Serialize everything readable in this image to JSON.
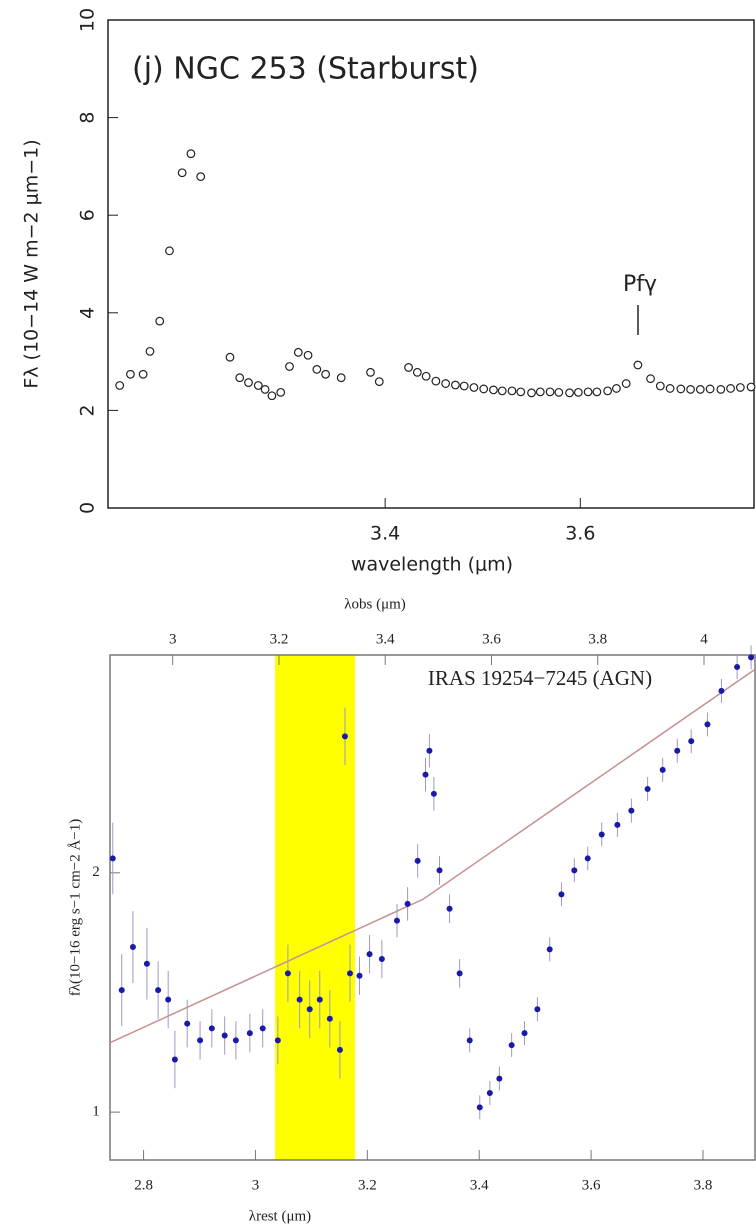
{
  "chart_data": [
    {
      "type": "scatter",
      "title": "(j) NGC 253 (Starburst)",
      "xlabel": "wavelength (μm)",
      "ylabel": "Fλ (10−14 W m−2 μm−1)",
      "annotation": "Pfγ",
      "x": [
        3.128,
        3.139,
        3.152,
        3.159,
        3.169,
        3.179,
        3.192,
        3.201,
        3.211,
        3.241,
        3.251,
        3.26,
        3.27,
        3.277,
        3.284,
        3.293,
        3.302,
        3.311,
        3.321,
        3.33,
        3.339,
        3.355,
        3.385,
        3.394,
        3.424,
        3.433,
        3.442,
        3.452,
        3.462,
        3.472,
        3.481,
        3.491,
        3.501,
        3.511,
        3.52,
        3.53,
        3.539,
        3.55,
        3.559,
        3.569,
        3.578,
        3.589,
        3.598,
        3.608,
        3.617,
        3.628,
        3.637,
        3.647,
        3.659,
        3.672,
        3.682,
        3.692,
        3.703,
        3.713,
        3.723,
        3.733,
        3.744,
        3.754,
        3.764,
        3.775
      ],
      "values": [
        2.51,
        2.74,
        2.74,
        3.21,
        3.83,
        5.27,
        6.87,
        7.26,
        6.79,
        3.09,
        2.67,
        2.57,
        2.51,
        2.43,
        2.3,
        2.37,
        2.9,
        3.19,
        3.13,
        2.84,
        2.74,
        2.67,
        2.78,
        2.59,
        2.88,
        2.78,
        2.7,
        2.6,
        2.55,
        2.52,
        2.5,
        2.47,
        2.44,
        2.42,
        2.4,
        2.4,
        2.38,
        2.36,
        2.38,
        2.38,
        2.37,
        2.36,
        2.37,
        2.38,
        2.38,
        2.4,
        2.45,
        2.55,
        2.93,
        2.65,
        2.5,
        2.45,
        2.44,
        2.43,
        2.43,
        2.44,
        2.43,
        2.45,
        2.47,
        2.48
      ],
      "color": "#222222",
      "xlim": [
        3.116,
        3.778
      ],
      "xticks": [
        3.4,
        3.6,
        3.8
      ],
      "ylim": [
        0,
        10
      ],
      "yticks": [
        0,
        2,
        4,
        6,
        8,
        10
      ]
    },
    {
      "type": "scatter",
      "title": "IRAS 19254−7245 (AGN)",
      "xlabel": "λrest (μm)",
      "x2label": "λobs (μm)",
      "ylabel": "fλ(10−16 erg s−1 cm−2 Å−1)",
      "x": [
        2.745,
        2.761,
        2.781,
        2.806,
        2.826,
        2.844,
        2.856,
        2.878,
        2.901,
        2.922,
        2.945,
        2.965,
        2.99,
        3.013,
        3.04,
        3.058,
        3.079,
        3.097,
        3.115,
        3.133,
        3.151,
        3.16,
        3.169,
        3.186,
        3.204,
        3.226,
        3.253,
        3.272,
        3.29,
        3.304,
        3.311,
        3.319,
        3.329,
        3.347,
        3.365,
        3.383,
        3.401,
        3.419,
        3.436,
        3.458,
        3.481,
        3.504,
        3.526,
        3.547,
        3.57,
        3.594,
        3.619,
        3.647,
        3.672,
        3.701,
        3.728,
        3.754,
        3.779,
        3.808,
        3.833,
        3.861,
        3.886
      ],
      "values": [
        2.06,
        1.51,
        1.69,
        1.62,
        1.51,
        1.47,
        1.22,
        1.37,
        1.3,
        1.35,
        1.32,
        1.3,
        1.33,
        1.35,
        1.3,
        1.58,
        1.47,
        1.43,
        1.47,
        1.39,
        1.26,
        2.57,
        1.58,
        1.57,
        1.66,
        1.64,
        1.8,
        1.87,
        2.05,
        2.41,
        2.51,
        2.33,
        2.01,
        1.85,
        1.58,
        1.3,
        1.02,
        1.08,
        1.14,
        1.28,
        1.33,
        1.43,
        1.68,
        1.91,
        2.01,
        2.06,
        2.16,
        2.2,
        2.26,
        2.35,
        2.43,
        2.51,
        2.55,
        2.62,
        2.76,
        2.86,
        2.9
      ],
      "errors": [
        0.15,
        0.15,
        0.15,
        0.15,
        0.12,
        0.12,
        0.12,
        0.1,
        0.08,
        0.08,
        0.08,
        0.08,
        0.08,
        0.08,
        0.1,
        0.12,
        0.12,
        0.12,
        0.12,
        0.12,
        0.12,
        0.12,
        0.12,
        0.08,
        0.08,
        0.08,
        0.07,
        0.07,
        0.07,
        0.07,
        0.07,
        0.07,
        0.06,
        0.06,
        0.06,
        0.05,
        0.05,
        0.05,
        0.05,
        0.05,
        0.05,
        0.05,
        0.05,
        0.05,
        0.05,
        0.05,
        0.05,
        0.05,
        0.05,
        0.05,
        0.05,
        0.05,
        0.05,
        0.05,
        0.05,
        0.05,
        0.05
      ],
      "color": "#1a1aa8",
      "error_color": "#9a9ac8",
      "fit": {
        "x": [
          2.74,
          3.3,
          3.893
        ],
        "values": [
          1.29,
          1.89,
          2.85
        ],
        "color": "#c89090"
      },
      "highlight": {
        "range": [
          3.035,
          3.178
        ],
        "color": "#ffff00"
      },
      "xlim": [
        2.74,
        3.893
      ],
      "xticks": [
        2.8,
        3,
        3.2,
        3.4,
        3.6,
        3.8
      ],
      "x2lim": [
        2.882,
        4.096
      ],
      "x2ticks": [
        3,
        3.2,
        3.4,
        3.6,
        3.8,
        4
      ],
      "ylim": [
        0.8,
        2.91
      ],
      "yticks": [
        1,
        2
      ]
    }
  ]
}
